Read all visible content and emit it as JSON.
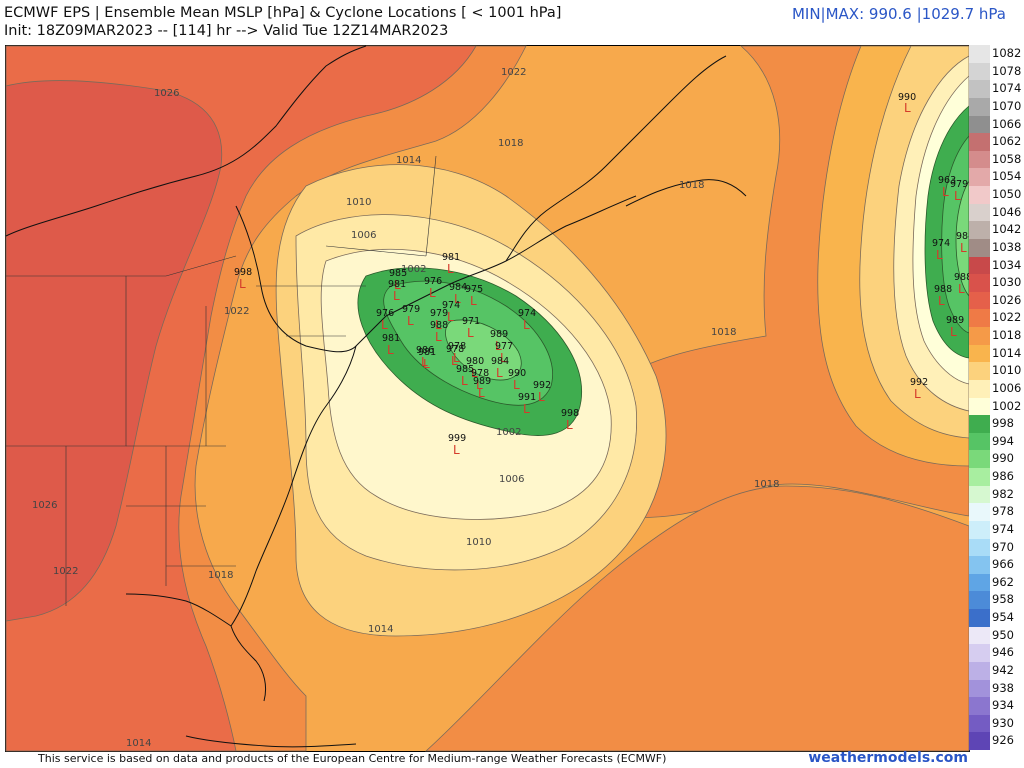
{
  "header": {
    "title_line1": "ECMWF EPS | Ensemble Mean MSLP [hPa] & Cyclone Locations [ < 1001 hPa]",
    "title_line2": "Init: 18Z09MAR2023 -- [114] hr --> Valid Tue 12Z14MAR2023",
    "minmax": "MIN|MAX: 990.6 |1029.7 hPa"
  },
  "footer": {
    "attribution": "This service is based on data and products of the European Centre for Medium-range Weather Forecasts (ECMWF)",
    "brand": "weathermodels.com"
  },
  "colorbar": {
    "levels": [
      {
        "value": "1082",
        "color": "#e6e6e6"
      },
      {
        "value": "1078",
        "color": "#d4d4d4"
      },
      {
        "value": "1074",
        "color": "#c2c2c2"
      },
      {
        "value": "1070",
        "color": "#a9a9a9"
      },
      {
        "value": "1066",
        "color": "#8f8f8f"
      },
      {
        "value": "1062",
        "color": "#c47070"
      },
      {
        "value": "1058",
        "color": "#d48c8c"
      },
      {
        "value": "1054",
        "color": "#e3a9a9"
      },
      {
        "value": "1050",
        "color": "#f1c9c9"
      },
      {
        "value": "1046",
        "color": "#d9d0cc"
      },
      {
        "value": "1042",
        "color": "#bdb0aa"
      },
      {
        "value": "1038",
        "color": "#a08c86"
      },
      {
        "value": "1034",
        "color": "#c8494a"
      },
      {
        "value": "1030",
        "color": "#d9524b"
      },
      {
        "value": "1026",
        "color": "#e5604a"
      },
      {
        "value": "1022",
        "color": "#ef7a46"
      },
      {
        "value": "1018",
        "color": "#f59a48"
      },
      {
        "value": "1014",
        "color": "#f9b44d"
      },
      {
        "value": "1010",
        "color": "#fcd27d"
      },
      {
        "value": "1006",
        "color": "#fff0b8"
      },
      {
        "value": "1002",
        "color": "#ffffd9"
      },
      {
        "value": "998",
        "color": "#3fad4f"
      },
      {
        "value": "994",
        "color": "#56c465"
      },
      {
        "value": "990",
        "color": "#7ad97a"
      },
      {
        "value": "986",
        "color": "#a8eea0"
      },
      {
        "value": "982",
        "color": "#d6f8d0"
      },
      {
        "value": "978",
        "color": "#e9f8fb"
      },
      {
        "value": "974",
        "color": "#cdeefa"
      },
      {
        "value": "970",
        "color": "#a9dcf7"
      },
      {
        "value": "966",
        "color": "#84c4f0"
      },
      {
        "value": "962",
        "color": "#5fa5e5"
      },
      {
        "value": "958",
        "color": "#4c8bd8"
      },
      {
        "value": "954",
        "color": "#3b6fca"
      },
      {
        "value": "950",
        "color": "#ece8f7"
      },
      {
        "value": "946",
        "color": "#d6cdf0"
      },
      {
        "value": "942",
        "color": "#bcb0e6"
      },
      {
        "value": "938",
        "color": "#a292db"
      },
      {
        "value": "934",
        "color": "#8b76cf"
      },
      {
        "value": "930",
        "color": "#745cc3"
      },
      {
        "value": "926",
        "color": "#5e45b5"
      }
    ]
  },
  "map": {
    "isobar_labels": [
      "1026",
      "1022",
      "1018",
      "1014",
      "1010",
      "1006",
      "1002",
      "1018",
      "1018",
      "1026",
      "1022",
      "1018",
      "1014",
      "1010",
      "1006",
      "1002",
      "1014",
      "1018",
      "1022"
    ],
    "cyclones": [
      {
        "value": "998"
      },
      {
        "value": "981"
      },
      {
        "value": "985"
      },
      {
        "value": "981"
      },
      {
        "value": "976"
      },
      {
        "value": "984"
      },
      {
        "value": "975"
      },
      {
        "value": "974"
      },
      {
        "value": "976"
      },
      {
        "value": "979"
      },
      {
        "value": "974"
      },
      {
        "value": "979"
      },
      {
        "value": "988"
      },
      {
        "value": "971"
      },
      {
        "value": "989"
      },
      {
        "value": "978"
      },
      {
        "value": "977"
      },
      {
        "value": "981"
      },
      {
        "value": "986"
      },
      {
        "value": "978"
      },
      {
        "value": "980"
      },
      {
        "value": "985"
      },
      {
        "value": "984"
      },
      {
        "value": "978"
      },
      {
        "value": "989"
      },
      {
        "value": "990"
      },
      {
        "value": "992"
      },
      {
        "value": "991"
      },
      {
        "value": "998"
      },
      {
        "value": "999"
      },
      {
        "value": "981"
      },
      {
        "value": "990"
      },
      {
        "value": "963"
      },
      {
        "value": "979"
      },
      {
        "value": "974"
      },
      {
        "value": "984"
      },
      {
        "value": "988"
      },
      {
        "value": "988"
      },
      {
        "value": "989"
      },
      {
        "value": "992"
      }
    ]
  }
}
